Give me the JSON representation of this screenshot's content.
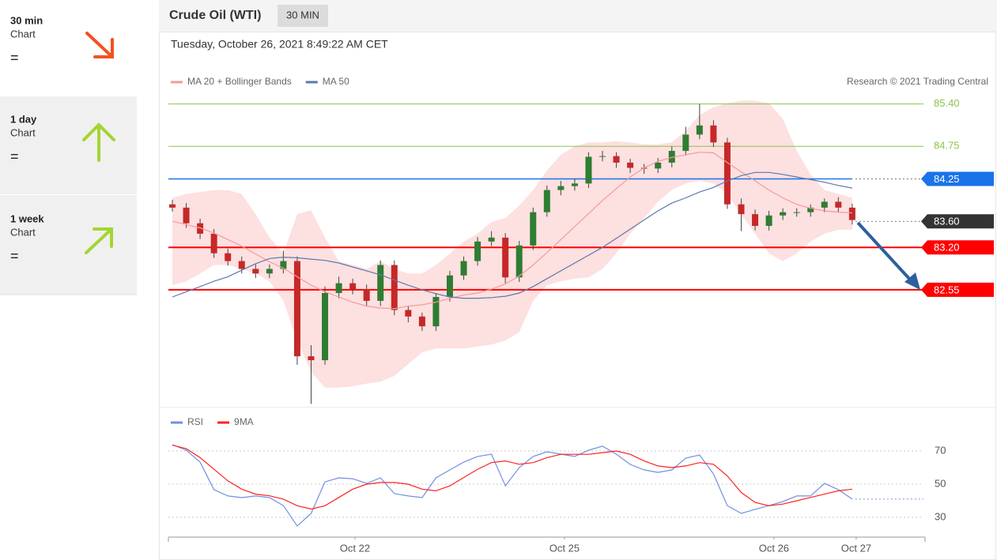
{
  "sidebar": {
    "items": [
      {
        "period": "30 min",
        "kind": "Chart",
        "signal": "="
      },
      {
        "period": "1 day",
        "kind": "Chart",
        "signal": "="
      },
      {
        "period": "1 week",
        "kind": "Chart",
        "signal": "="
      }
    ]
  },
  "header": {
    "title": "Crude Oil (WTI)",
    "interval": "30 MIN",
    "datetime": "Tuesday, October 26, 2021 8:49:22 AM CET",
    "credit": "Research © 2021 Trading Central"
  },
  "chart_data": [
    {
      "type": "candlestick",
      "x": [
        0,
        1,
        2,
        3,
        4,
        5,
        6,
        7,
        8,
        9,
        10,
        11,
        12,
        13,
        14,
        15,
        16,
        17,
        18,
        19,
        20,
        21,
        22,
        23,
        24,
        25,
        26,
        27,
        28,
        29,
        30,
        31,
        32,
        33,
        34,
        35,
        36,
        37,
        38,
        39,
        40,
        41,
        42,
        43,
        44,
        45,
        46,
        47,
        48,
        49
      ],
      "open": [
        83.86,
        83.81,
        83.57,
        83.41,
        83.11,
        82.99,
        82.87,
        82.8,
        82.87,
        82.99,
        81.53,
        81.47,
        82.5,
        82.65,
        82.56,
        82.38,
        82.93,
        82.24,
        82.14,
        81.99,
        82.44,
        82.77,
        82.99,
        83.29,
        83.35,
        82.74,
        83.23,
        83.74,
        84.08,
        84.14,
        84.18,
        84.59,
        84.6,
        84.5,
        84.42,
        84.41,
        84.5,
        84.68,
        84.93,
        85.07,
        84.81,
        83.86,
        83.71,
        83.53,
        83.69,
        83.74,
        83.74,
        83.81,
        83.9,
        83.81
      ],
      "high": [
        83.93,
        83.88,
        83.64,
        83.48,
        83.18,
        83.06,
        82.94,
        82.94,
        83.15,
        83.06,
        81.7,
        82.6,
        82.75,
        82.72,
        82.63,
        83.0,
        83.0,
        82.3,
        82.2,
        82.5,
        82.84,
        83.06,
        83.36,
        83.45,
        83.42,
        83.3,
        83.81,
        84.15,
        84.22,
        84.25,
        84.66,
        84.68,
        84.66,
        84.56,
        84.48,
        84.57,
        84.75,
        85.05,
        85.4,
        85.15,
        84.88,
        83.95,
        83.78,
        83.76,
        83.8,
        83.8,
        83.86,
        83.95,
        83.97,
        83.87
      ],
      "low": [
        83.75,
        83.5,
        83.33,
        83.04,
        82.92,
        82.8,
        82.73,
        82.73,
        82.8,
        81.4,
        80.8,
        81.4,
        82.42,
        82.48,
        82.3,
        82.3,
        82.16,
        82.05,
        81.92,
        81.92,
        82.37,
        82.7,
        82.92,
        83.22,
        82.65,
        82.67,
        83.16,
        83.67,
        84.0,
        84.07,
        84.11,
        84.52,
        84.42,
        84.34,
        84.33,
        84.34,
        84.43,
        84.61,
        84.86,
        84.74,
        83.79,
        83.45,
        83.46,
        83.46,
        83.62,
        83.67,
        83.67,
        83.74,
        83.74,
        83.55
      ],
      "close": [
        83.81,
        83.57,
        83.41,
        83.11,
        82.99,
        82.87,
        82.8,
        82.87,
        82.99,
        81.53,
        81.47,
        82.5,
        82.65,
        82.56,
        82.38,
        82.93,
        82.24,
        82.14,
        81.99,
        82.44,
        82.77,
        82.99,
        83.29,
        83.35,
        82.74,
        83.23,
        83.74,
        84.08,
        84.14,
        84.18,
        84.59,
        84.6,
        84.5,
        84.42,
        84.41,
        84.5,
        84.68,
        84.93,
        85.07,
        84.81,
        83.86,
        83.71,
        83.53,
        83.69,
        83.74,
        83.74,
        83.81,
        83.9,
        83.81,
        83.62
      ],
      "up_color": "#2e7d32",
      "down_color": "#c62828",
      "wick_color": "#444444",
      "series": [
        {
          "name": "MA 20 + Bollinger Bands",
          "color": "#f59a9a",
          "band_color": "#fde0e0",
          "values": [
            83.6,
            83.55,
            83.5,
            83.42,
            83.32,
            83.22,
            83.1,
            82.98,
            82.88,
            82.75,
            82.62,
            82.52,
            82.44,
            82.36,
            82.3,
            82.27,
            82.26,
            82.3,
            82.32,
            82.36,
            82.42,
            82.47,
            82.5,
            82.56,
            82.64,
            82.76,
            82.93,
            83.12,
            83.32,
            83.52,
            83.72,
            83.92,
            84.1,
            84.28,
            84.42,
            84.52,
            84.58,
            84.62,
            84.66,
            84.65,
            84.5,
            84.36,
            84.22,
            84.08,
            83.96,
            83.86,
            83.8,
            83.76,
            83.74,
            83.73
          ],
          "upper": [
            83.96,
            84.02,
            84.05,
            84.08,
            84.08,
            84.02,
            83.71,
            83.35,
            83.11,
            83.71,
            83.77,
            83.35,
            82.99,
            82.93,
            82.87,
            82.99,
            82.87,
            82.8,
            82.8,
            82.93,
            83.11,
            83.29,
            83.41,
            83.59,
            83.65,
            83.84,
            84.08,
            84.38,
            84.62,
            84.75,
            84.81,
            84.81,
            84.83,
            84.81,
            84.78,
            84.78,
            84.81,
            84.99,
            85.23,
            85.35,
            85.41,
            85.45,
            85.45,
            85.41,
            85.17,
            84.68,
            84.32,
            84.08,
            84.02,
            83.96
          ],
          "lower": [
            82.62,
            82.68,
            82.8,
            82.93,
            82.93,
            82.87,
            82.8,
            82.68,
            82.38,
            81.77,
            81.29,
            81.05,
            81.05,
            81.07,
            81.11,
            81.14,
            81.23,
            81.41,
            81.59,
            81.65,
            81.65,
            81.65,
            81.68,
            81.71,
            81.77,
            81.9,
            82.38,
            82.62,
            82.68,
            82.72,
            82.74,
            82.87,
            83.11,
            83.41,
            83.65,
            83.9,
            84.08,
            84.18,
            84.22,
            84.18,
            84.02,
            83.71,
            83.41,
            83.11,
            82.99,
            83.11,
            83.29,
            83.41,
            83.47,
            83.47
          ]
        },
        {
          "name": "MA 50",
          "color": "#5b78b0",
          "values": [
            82.44,
            82.52,
            82.6,
            82.68,
            82.75,
            82.85,
            82.95,
            83.03,
            83.05,
            83.04,
            83.02,
            83.0,
            82.96,
            82.9,
            82.84,
            82.78,
            82.7,
            82.62,
            82.55,
            82.49,
            82.44,
            82.42,
            82.42,
            82.43,
            82.45,
            82.5,
            82.6,
            82.72,
            82.84,
            82.96,
            83.08,
            83.2,
            83.34,
            83.48,
            83.62,
            83.76,
            83.88,
            83.96,
            84.05,
            84.12,
            84.22,
            84.3,
            84.35,
            84.35,
            84.32,
            84.28,
            84.24,
            84.2,
            84.15,
            84.11
          ]
        }
      ],
      "levels": [
        {
          "value": {
            "value": 85.4,
            "label": "85.40"
          },
          "color": "#8bc34a",
          "line": "solid",
          "badge": false
        },
        {
          "value": 84.75,
          "color": "#8bc34a",
          "line": "solid",
          "badge": false
        },
        {
          "value": 84.25,
          "color": "#1a73e8",
          "line": "solid-dotted-tail",
          "badge": true
        },
        {
          "value": {
            "value": 83.6,
            "label": "83.60"
          },
          "color": "#333333",
          "line": "dotted-tail",
          "badge": true
        },
        {
          "value": {
            "value": 83.2,
            "label": "83.20"
          },
          "color": "#ff0000",
          "line": "thick",
          "badge": true
        },
        {
          "value": 82.55,
          "color": "#ff0000",
          "line": "thick",
          "badge": true
        }
      ],
      "xlim": [
        -0.285,
        54.25
      ],
      "ylim": [
        80.78,
        85.48
      ]
    },
    {
      "type": "line",
      "series": [
        {
          "name": "RSI",
          "color": "#7090e0",
          "values": [
            73.8,
            70.5,
            63.3,
            46.7,
            42.9,
            41.9,
            42.9,
            41.9,
            37.1,
            24.8,
            32.4,
            51.4,
            53.8,
            53.3,
            50.5,
            53.8,
            44.3,
            42.9,
            41.9,
            53.8,
            58.6,
            63.3,
            66.7,
            68.1,
            49.0,
            60.0,
            66.7,
            69.5,
            68.1,
            66.7,
            70.5,
            72.9,
            68.1,
            61.9,
            58.6,
            57.1,
            58.6,
            65.7,
            67.6,
            56.2,
            37.1,
            32.4,
            34.8,
            37.1,
            39.5,
            42.9,
            42.9,
            50.5,
            46.7,
            41.0
          ]
        },
        {
          "name": "9MA",
          "color": "#ff2020",
          "values": [
            73.5,
            71.4,
            66,
            59,
            52,
            47,
            44,
            43,
            41,
            37,
            35,
            37,
            42,
            47,
            50,
            51,
            51,
            50,
            47,
            46,
            49,
            54,
            59,
            63,
            64,
            62,
            63,
            66,
            68,
            68,
            68,
            69,
            70,
            68,
            64,
            61,
            60,
            61,
            63,
            62,
            55,
            45,
            39,
            37,
            38,
            40,
            42,
            44,
            46,
            47
          ]
        }
      ],
      "ylim": [
        20,
        80
      ],
      "yticks": [
        30,
        50,
        70
      ],
      "grid": true,
      "xticks": [
        {
          "value": 13.16,
          "label": "Oct 22"
        },
        {
          "value": 28.26,
          "label": "Oct 25"
        },
        {
          "value": 43.36,
          "label": "Oct 26"
        },
        {
          "value": 49.29,
          "label": "Oct 27"
        }
      ]
    }
  ]
}
